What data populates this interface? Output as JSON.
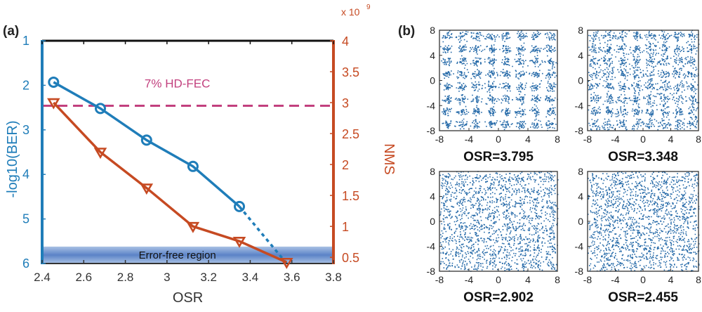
{
  "panel_a": {
    "label": "(a)",
    "fec_label": "7% HD-FEC",
    "error_free_label": "Error-free region",
    "multiplier_label": "x 10",
    "multiplier_exp": "9"
  },
  "panel_b": {
    "label": "(b)"
  },
  "colors": {
    "ber": "#1f7db9",
    "nms": "#c64a22",
    "fec": "#c2407e",
    "axis": "#333333",
    "dots": "#2469a8"
  },
  "chart_data": [
    {
      "type": "line",
      "title": "",
      "xlabel": "OSR",
      "ylabel": "-log10(BER)",
      "y2label": "NMS",
      "xlim": [
        2.4,
        3.8
      ],
      "ylim": [
        1,
        6
      ],
      "ylim_inverted": true,
      "y2lim": [
        0.4,
        4
      ],
      "x_ticks": [
        "2.4",
        "2.6",
        "2.8",
        "3",
        "3.2",
        "3.4",
        "3.6",
        "3.8"
      ],
      "y_ticks": [
        "1",
        "2",
        "3",
        "4",
        "5",
        "6"
      ],
      "y2_ticks": [
        "0.5",
        "1",
        "1.5",
        "2",
        "2.5",
        "3",
        "3.5",
        "4"
      ],
      "series": [
        {
          "name": "-log10(BER)",
          "axis": "left",
          "marker": "circle",
          "x": [
            2.455,
            2.68,
            2.902,
            3.125,
            3.348
          ],
          "y": [
            1.93,
            2.52,
            3.23,
            3.82,
            4.72
          ]
        },
        {
          "name": "-log10(BER) extrapolation",
          "axis": "left",
          "style": "dotted",
          "x": [
            3.348,
            3.575
          ],
          "y": [
            4.72,
            6.0
          ]
        },
        {
          "name": "NMS",
          "axis": "right",
          "marker": "triangle-down",
          "x": [
            2.455,
            2.68,
            2.902,
            3.125,
            3.348,
            3.575
          ],
          "y": [
            3.0,
            2.2,
            1.62,
            1.0,
            0.76,
            0.42
          ]
        }
      ],
      "annotations": [
        {
          "text": "7% HD-FEC",
          "type": "hline",
          "axis": "right",
          "value": 2.95
        },
        {
          "text": "Error-free region",
          "type": "band",
          "axis": "left",
          "range": [
            5.62,
            6.0
          ]
        }
      ]
    },
    {
      "type": "scatter",
      "subtype": "constellation-64QAM",
      "xlim": [
        -8,
        8
      ],
      "ylim": [
        -8,
        8
      ],
      "x_ticks": [
        "-8",
        "-4",
        "0",
        "4",
        "8"
      ],
      "y_ticks": [
        "8",
        "4",
        "0",
        "-4",
        "-8"
      ],
      "grid_levels": [
        -7,
        -5,
        -3,
        -1,
        1,
        3,
        5,
        7
      ],
      "panels": [
        {
          "title": "OSR=3.795",
          "noise_std": 0.28
        },
        {
          "title": "OSR=3.348",
          "noise_std": 0.36
        },
        {
          "title": "OSR=2.902",
          "noise_std": 0.48
        },
        {
          "title": "OSR=2.455",
          "noise_std": 0.72
        }
      ]
    }
  ]
}
